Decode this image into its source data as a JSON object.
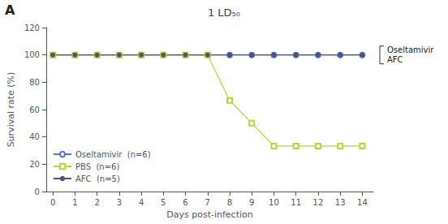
{
  "chart_data": {
    "type": "line",
    "title": "1 LD₅₀",
    "panel_label": "A",
    "xlabel": "Days post-infection",
    "ylabel": "Survival rate (%)",
    "annotations": [
      "Oseltamivir",
      "AFC"
    ],
    "xlim": [
      -0.3,
      14.5
    ],
    "xticks": [
      0,
      1,
      2,
      3,
      4,
      5,
      6,
      7,
      8,
      9,
      10,
      11,
      12,
      13,
      14
    ],
    "ylim": [
      0,
      120
    ],
    "yticks": [
      0,
      20,
      40,
      60,
      80,
      100,
      120
    ],
    "grid": false,
    "legend": "lower left",
    "x": [
      0,
      1,
      2,
      3,
      4,
      5,
      6,
      7,
      8,
      9,
      10,
      11,
      12,
      13,
      14
    ],
    "series": [
      {
        "name": "Oseltamivir  (n=6)",
        "marker": "open_circle",
        "line_style": "solid",
        "values": [
          100,
          100,
          100,
          100,
          100,
          100,
          100,
          100,
          100,
          100,
          100,
          100,
          100,
          100,
          100
        ]
      },
      {
        "name": "PBS  (n=6)",
        "marker": "open_square",
        "line_style": "solid",
        "values": [
          100,
          100,
          100,
          100,
          100,
          100,
          100,
          100,
          66.7,
          50,
          33.3,
          33.3,
          33.3,
          33.3,
          33.3
        ]
      },
      {
        "name": "AFC  (n=5)",
        "marker": "filled_circle",
        "line_style": "solid",
        "values": [
          100,
          100,
          100,
          100,
          100,
          100,
          100,
          100,
          100,
          100,
          100,
          100,
          100,
          100,
          100
        ]
      }
    ]
  }
}
